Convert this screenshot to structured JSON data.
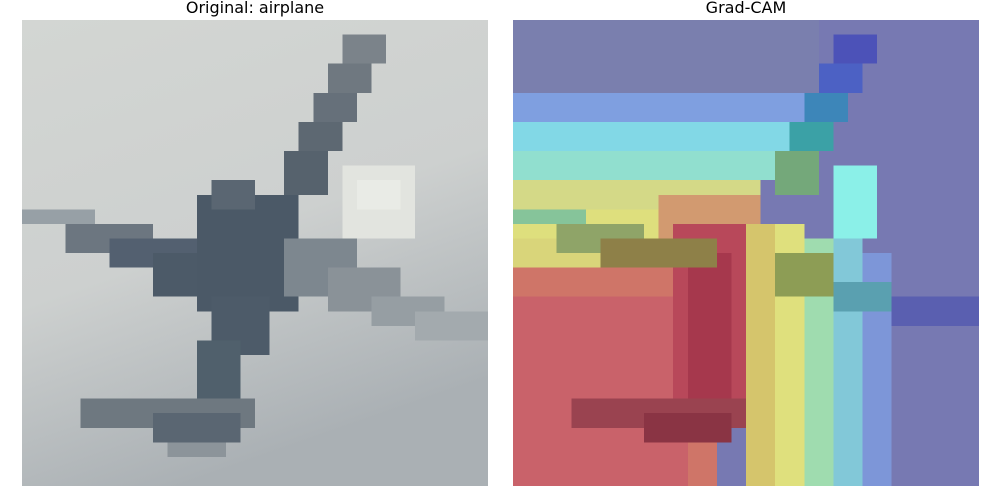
{
  "panels": [
    {
      "title": "Original: airplane"
    },
    {
      "title": "Grad-CAM"
    }
  ],
  "colors": {
    "sky_light": "#d4d7d5",
    "sky_dark": "#a9afb3",
    "plane": "#4a5866",
    "jet_blue": "#7678b4",
    "cyan": "#7ee6e2",
    "yellow": "#d9dd7a",
    "red": "#c25a5c"
  }
}
